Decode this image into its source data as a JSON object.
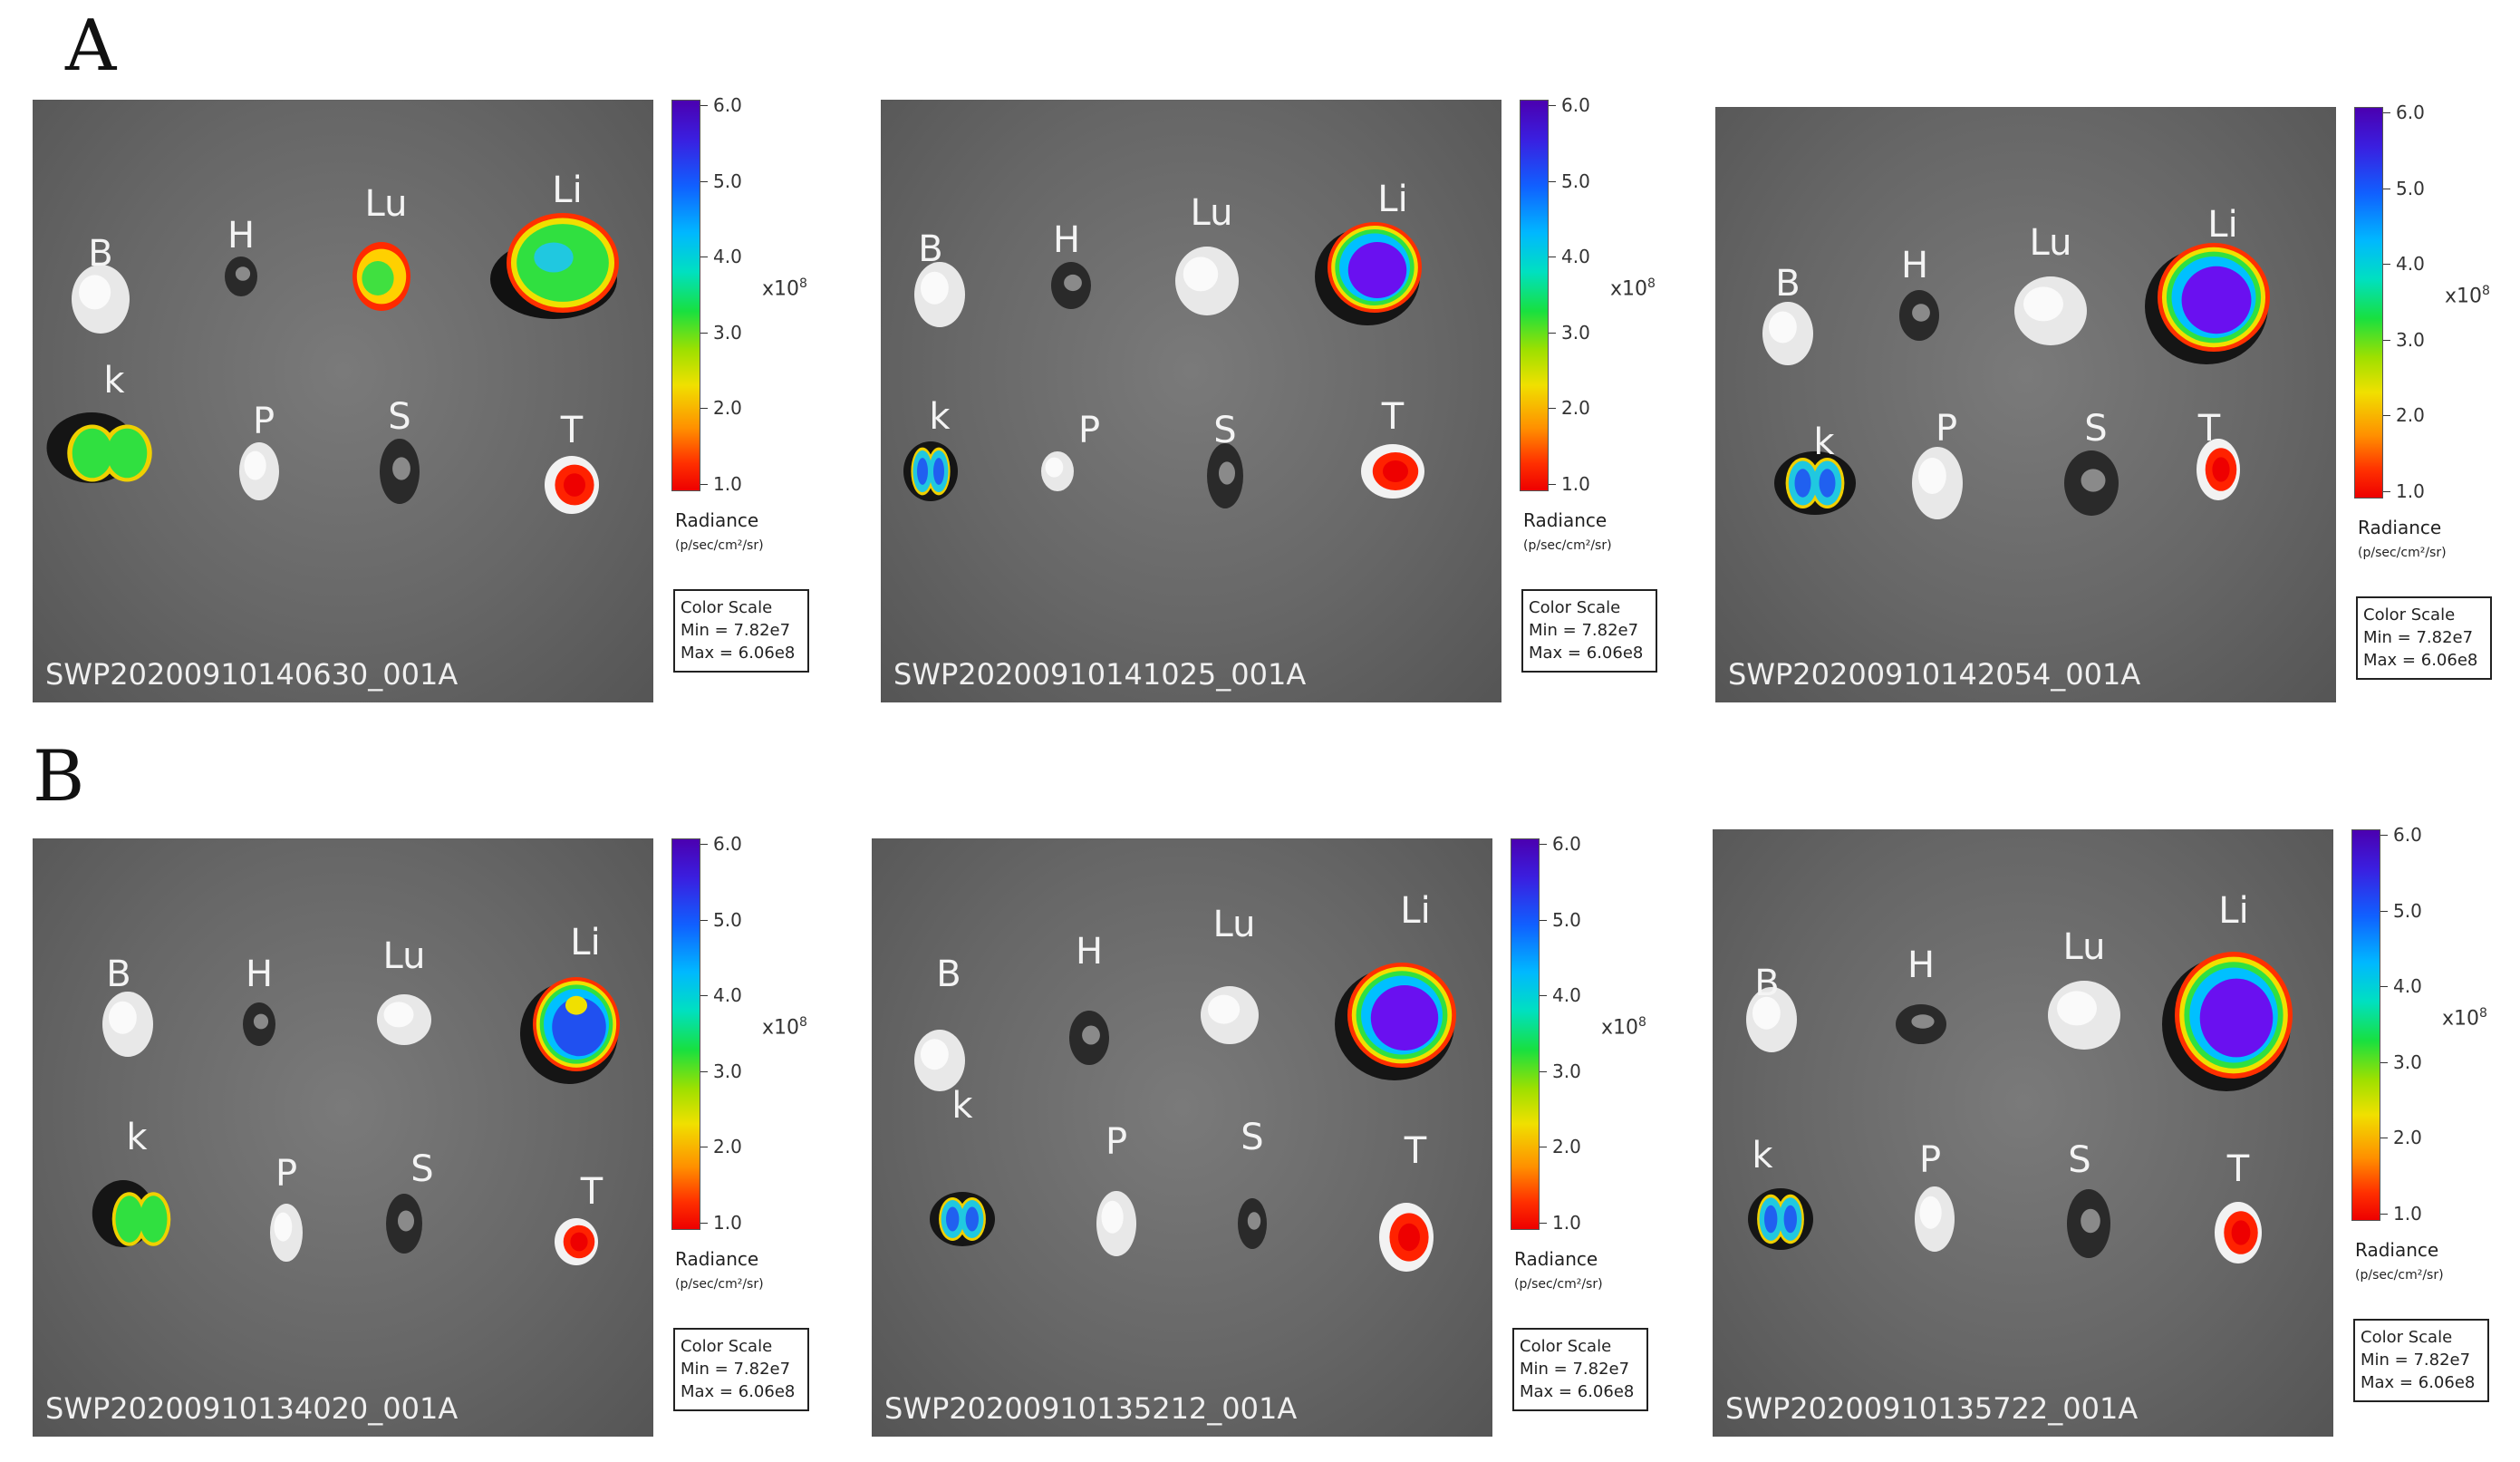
{
  "row_labels": [
    "A",
    "B"
  ],
  "color_scale": {
    "ticks": [
      "6.0",
      "5.0",
      "4.0",
      "3.0",
      "2.0",
      "1.0"
    ],
    "multiplier_base": "x10",
    "multiplier_exp": "8",
    "radiance_label": "Radiance",
    "radiance_units": "(p/sec/cm²/sr)",
    "box_title": "Color Scale",
    "box_min": "Min = 7.82e7",
    "box_max": "Max = 6.06e8"
  },
  "organ_labels": [
    "B",
    "H",
    "Lu",
    "Li",
    "k",
    "P",
    "S",
    "T"
  ],
  "panels": [
    {
      "file_id": "SWP20200910140630_001A"
    },
    {
      "file_id": "SWP20200910141025_001A"
    },
    {
      "file_id": "SWP20200910142054_001A"
    },
    {
      "file_id": "SWP20200910134020_001A"
    },
    {
      "file_id": "SWP20200910135212_001A"
    },
    {
      "file_id": "SWP20200910135722_001A"
    }
  ]
}
